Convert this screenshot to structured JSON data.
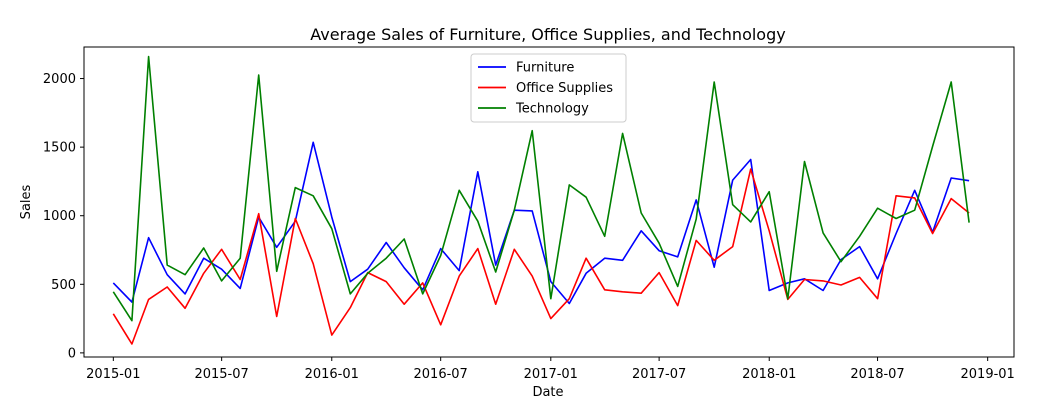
{
  "chart_data": {
    "type": "line",
    "title": "Average Sales of Furniture, Office Supplies, and Technology",
    "xlabel": "Date",
    "ylabel": "Sales",
    "ylim": [
      -30,
      2230
    ],
    "xlim": [
      "2014-11-13",
      "2019-02-14"
    ],
    "grid": false,
    "legend_position": "top-center",
    "x_ticks": [
      {
        "date": "2015-01-01",
        "label": "2015-01"
      },
      {
        "date": "2015-07-01",
        "label": "2015-07"
      },
      {
        "date": "2016-01-01",
        "label": "2016-01"
      },
      {
        "date": "2016-07-01",
        "label": "2016-07"
      },
      {
        "date": "2017-01-01",
        "label": "2017-01"
      },
      {
        "date": "2017-07-01",
        "label": "2017-07"
      },
      {
        "date": "2018-01-01",
        "label": "2018-01"
      },
      {
        "date": "2018-07-01",
        "label": "2018-07"
      },
      {
        "date": "2019-01-01",
        "label": "2019-01"
      }
    ],
    "y_ticks": [
      0,
      500,
      1000,
      1500,
      2000
    ],
    "x": [
      "2015-01-01",
      "2015-02-01",
      "2015-03-01",
      "2015-04-01",
      "2015-05-01",
      "2015-06-01",
      "2015-07-01",
      "2015-08-01",
      "2015-09-01",
      "2015-10-01",
      "2015-11-01",
      "2015-12-01",
      "2016-01-01",
      "2016-02-01",
      "2016-03-01",
      "2016-04-01",
      "2016-05-01",
      "2016-06-01",
      "2016-07-01",
      "2016-08-01",
      "2016-09-01",
      "2016-10-01",
      "2016-11-01",
      "2016-12-01",
      "2017-01-01",
      "2017-02-01",
      "2017-03-01",
      "2017-04-01",
      "2017-05-01",
      "2017-06-01",
      "2017-07-01",
      "2017-08-01",
      "2017-09-01",
      "2017-10-01",
      "2017-11-01",
      "2017-12-01",
      "2018-01-01",
      "2018-02-01",
      "2018-03-01",
      "2018-04-01",
      "2018-05-01",
      "2018-06-01",
      "2018-07-01",
      "2018-08-01",
      "2018-09-01",
      "2018-10-01",
      "2018-11-01",
      "2018-12-01"
    ],
    "series": [
      {
        "name": "Furniture",
        "color": "#0000ff",
        "values": [
          510,
          370,
          840,
          570,
          430,
          690,
          610,
          470,
          990,
          770,
          960,
          1535,
          990,
          520,
          610,
          805,
          620,
          460,
          760,
          600,
          1320,
          640,
          1040,
          1035,
          520,
          360,
          580,
          690,
          675,
          890,
          745,
          700,
          1115,
          625,
          1260,
          1410,
          455,
          510,
          540,
          455,
          680,
          775,
          540,
          870,
          1185,
          880,
          1275,
          1255
        ]
      },
      {
        "name": "Office Supplies",
        "color": "#ff0000",
        "values": [
          285,
          65,
          390,
          480,
          325,
          580,
          755,
          535,
          1015,
          265,
          980,
          650,
          130,
          330,
          585,
          520,
          355,
          510,
          205,
          560,
          760,
          355,
          755,
          560,
          250,
          395,
          690,
          460,
          445,
          435,
          585,
          345,
          820,
          675,
          775,
          1340,
          890,
          390,
          535,
          525,
          495,
          550,
          395,
          1145,
          1130,
          870,
          1125,
          1020
        ]
      },
      {
        "name": "Technology",
        "color": "#008000",
        "values": [
          445,
          235,
          2160,
          640,
          570,
          765,
          525,
          690,
          2025,
          595,
          1205,
          1145,
          905,
          430,
          580,
          690,
          830,
          430,
          710,
          1185,
          960,
          590,
          1040,
          1620,
          395,
          1225,
          1135,
          850,
          1600,
          1020,
          800,
          485,
          975,
          1975,
          1080,
          955,
          1175,
          395,
          1395,
          875,
          665,
          850,
          1055,
          980,
          1040,
          1505,
          1975,
          950
        ]
      }
    ]
  }
}
